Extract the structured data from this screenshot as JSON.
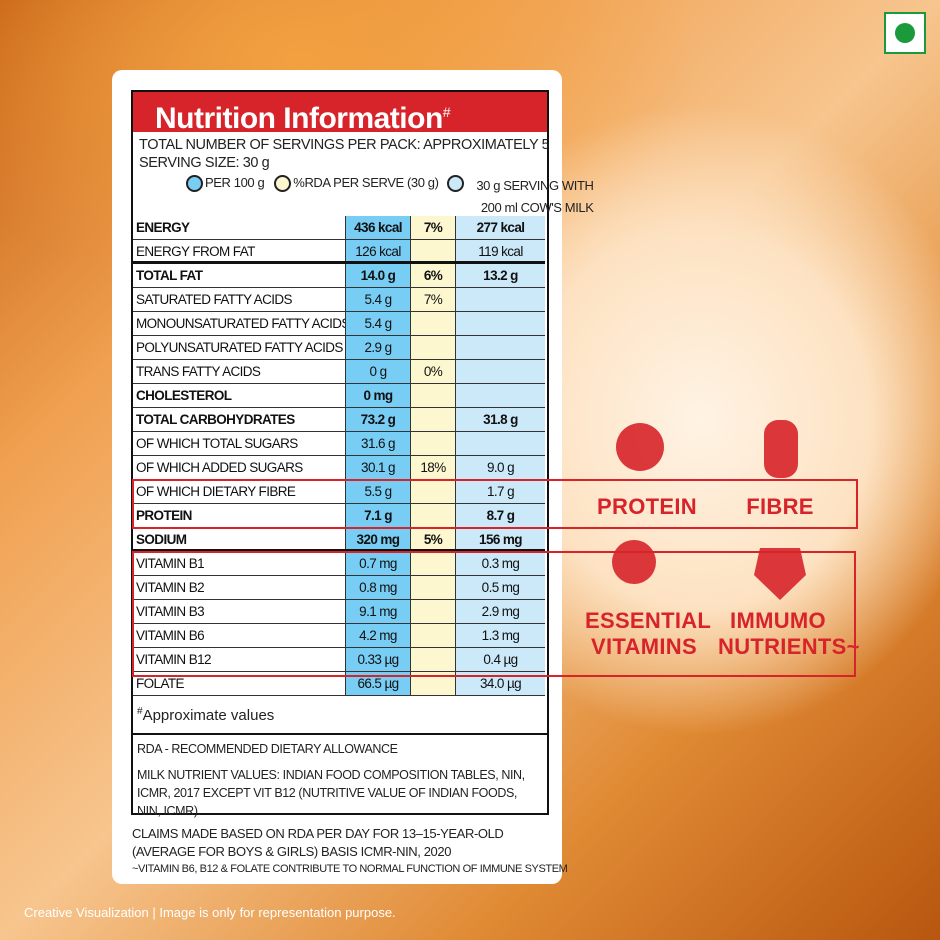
{
  "header": {
    "title": "Nutrition Information",
    "title_mark": "#",
    "servings": "TOTAL NUMBER OF SERVINGS PER PACK: APPROXIMATELY 5",
    "serving_size": "SERVING SIZE: 30 g"
  },
  "legend": [
    "PER 100 g",
    "%RDA PER SERVE (30 g)",
    "30 g SERVING WITH 200 ml COW'S MILK"
  ],
  "table": {
    "rows": [
      [
        "ENERGY",
        "436 kcal",
        "7%",
        "277 kcal"
      ],
      [
        "ENERGY FROM FAT",
        "126 kcal",
        null,
        "119 kcal"
      ],
      [
        "TOTAL FAT",
        "14.0 g",
        "6%",
        "13.2 g"
      ],
      [
        "SATURATED FATTY ACIDS",
        "5.4 g",
        "7%",
        null
      ],
      [
        "MONOUNSATURATED FATTY ACIDS",
        "5.4 g",
        null,
        null
      ],
      [
        "POLYUNSATURATED FATTY ACIDS",
        "2.9 g",
        null,
        null
      ],
      [
        "TRANS FATTY ACIDS",
        "0 g",
        "0%",
        null
      ],
      [
        "CHOLESTEROL",
        "0 mg",
        null,
        null
      ],
      [
        "TOTAL CARBOHYDRATES",
        "73.2 g",
        null,
        "31.8 g"
      ],
      [
        "OF WHICH TOTAL SUGARS",
        "31.6 g",
        null,
        null
      ],
      [
        "OF WHICH ADDED SUGARS",
        "30.1 g",
        "18%",
        "9.0 g"
      ],
      [
        "OF WHICH DIETARY FIBRE",
        "5.5 g",
        null,
        "1.7 g"
      ],
      [
        "PROTEIN",
        "7.1 g",
        null,
        "8.7 g"
      ],
      [
        "SODIUM",
        "320 mg",
        "5%",
        "156 mg"
      ],
      [
        "VITAMIN B1",
        "0.7 mg",
        null,
        "0.3 mg"
      ],
      [
        "VITAMIN B2",
        "0.8 mg",
        null,
        "0.5 mg"
      ],
      [
        "VITAMIN B3",
        "9.1 mg",
        null,
        "2.9 mg"
      ],
      [
        "VITAMIN B6",
        "4.2 mg",
        null,
        "1.3 mg"
      ],
      [
        "VITAMIN B12",
        "0.33 µg",
        null,
        "0.4 µg"
      ],
      [
        "FOLATE",
        "66.5 µg",
        null,
        "34.0 µg"
      ]
    ]
  },
  "notes": {
    "approx_mark": "#",
    "approx": "Approximate values",
    "rda": "RDA - RECOMMENDED DIETARY ALLOWANCE",
    "milk": "MILK NUTRIENT VALUES: INDIAN FOOD COMPOSITION TABLES, NIN, ICMR, 2017 EXCEPT VIT B12 (NUTRITIVE VALUE OF INDIAN FOODS, NIN, ICMR)."
  },
  "claims": {
    "text": "CLAIMS MADE BASED ON RDA PER DAY FOR 13–15-YEAR-OLD (AVERAGE FOR BOYS & GIRLS) BASIS ICMR-NIN, 2020",
    "immune": "~VITAMIN B6, B12 & FOLATE CONTRIBUTE TO NORMAL FUNCTION OF IMMUNE SYSTEM"
  },
  "badges": [
    "PROTEIN",
    "FIBRE",
    "ESSENTIAL VITAMINS",
    "IMMUMO NUTRIENTS~"
  ],
  "footer": "Creative Visualization | Image is only for representation purpose."
}
